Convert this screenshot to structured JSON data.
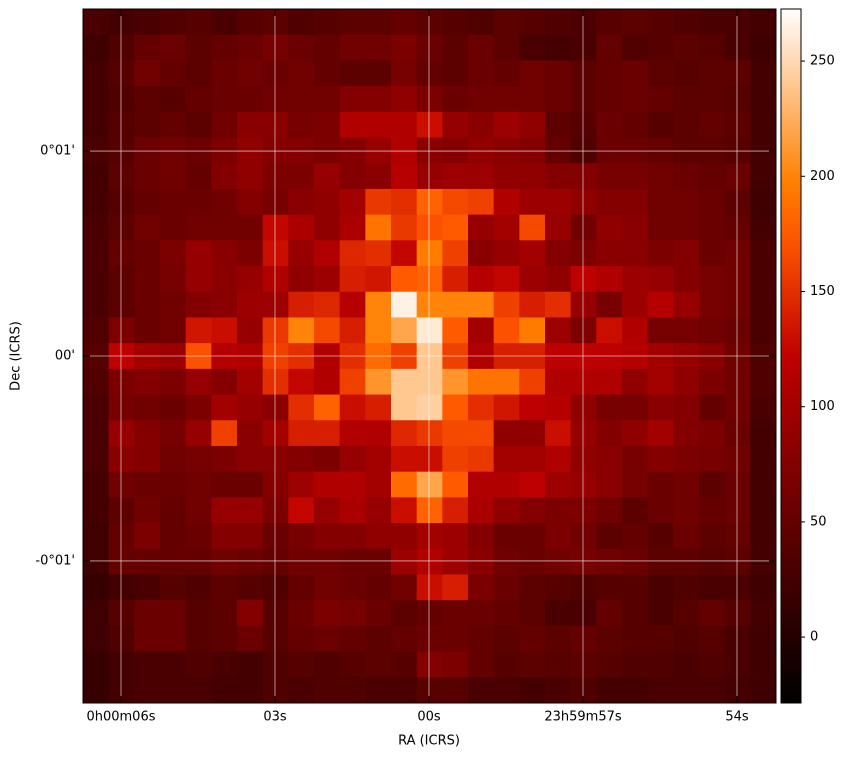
{
  "chart_data": {
    "type": "heatmap",
    "x_label": "RA (ICRS)",
    "y_label": "Dec (ICRS)",
    "xlim": [
      6.74,
      -6.76
    ],
    "xticks": [
      {
        "value": 6,
        "label": "0h00m06s"
      },
      {
        "value": 3,
        "label": "03s"
      },
      {
        "value": 0,
        "label": "00s"
      },
      {
        "value": -3,
        "label": "23h59m57s"
      },
      {
        "value": -6,
        "label": "54s"
      }
    ],
    "ylim": [
      -1.693,
      1.693
    ],
    "yticks": [
      {
        "value": 1,
        "label": "0°01'"
      },
      {
        "value": 0,
        "label": "00'"
      },
      {
        "value": -1,
        "label": "-0°01'"
      }
    ],
    "grid": true,
    "grid_color": "#ffffff",
    "colormap": "gist_heat",
    "clim": [
      -28.6,
      272.6
    ],
    "cticks": [
      0,
      50,
      100,
      150,
      200,
      250
    ],
    "values": [
      [
        30,
        25,
        30,
        35,
        40,
        30,
        40,
        45,
        35,
        40,
        45,
        45,
        50,
        45,
        40,
        35,
        45,
        40,
        35,
        30,
        40,
        45,
        40,
        35,
        30,
        30,
        25
      ],
      [
        20,
        35,
        50,
        55,
        45,
        50,
        55,
        65,
        55,
        50,
        60,
        60,
        70,
        55,
        45,
        55,
        45,
        30,
        25,
        30,
        50,
        35,
        40,
        45,
        40,
        30,
        20
      ],
      [
        25,
        40,
        60,
        50,
        45,
        55,
        60,
        55,
        60,
        50,
        45,
        45,
        65,
        50,
        45,
        55,
        50,
        60,
        55,
        45,
        50,
        55,
        45,
        40,
        45,
        45,
        25
      ],
      [
        25,
        35,
        45,
        40,
        50,
        55,
        55,
        60,
        60,
        60,
        75,
        75,
        85,
        70,
        55,
        60,
        60,
        60,
        55,
        45,
        50,
        55,
        50,
        45,
        45,
        40,
        25
      ],
      [
        25,
        40,
        45,
        50,
        45,
        60,
        80,
        80,
        65,
        70,
        110,
        110,
        110,
        130,
        90,
        80,
        95,
        85,
        45,
        40,
        55,
        50,
        40,
        45,
        50,
        45,
        25
      ],
      [
        30,
        40,
        55,
        60,
        55,
        70,
        85,
        75,
        75,
        70,
        75,
        90,
        110,
        80,
        75,
        85,
        80,
        75,
        50,
        35,
        55,
        55,
        50,
        45,
        45,
        40,
        25
      ],
      [
        25,
        45,
        55,
        60,
        50,
        75,
        85,
        70,
        70,
        90,
        75,
        80,
        115,
        90,
        95,
        95,
        85,
        85,
        75,
        75,
        65,
        65,
        60,
        55,
        50,
        55,
        25
      ],
      [
        25,
        40,
        50,
        55,
        55,
        60,
        75,
        65,
        80,
        85,
        100,
        155,
        150,
        180,
        165,
        160,
        110,
        95,
        95,
        85,
        75,
        75,
        60,
        60,
        55,
        45,
        20
      ],
      [
        30,
        45,
        60,
        55,
        60,
        60,
        60,
        125,
        105,
        85,
        105,
        190,
        155,
        170,
        175,
        90,
        100,
        165,
        90,
        60,
        85,
        80,
        60,
        60,
        55,
        50,
        25
      ],
      [
        30,
        50,
        55,
        70,
        90,
        80,
        70,
        130,
        90,
        110,
        145,
        150,
        125,
        195,
        160,
        80,
        90,
        100,
        75,
        70,
        80,
        80,
        70,
        75,
        55,
        60,
        30
      ],
      [
        30,
        45,
        55,
        65,
        90,
        80,
        90,
        110,
        85,
        95,
        140,
        135,
        175,
        180,
        140,
        115,
        125,
        95,
        85,
        120,
        110,
        95,
        90,
        75,
        65,
        60,
        30
      ],
      [
        30,
        45,
        55,
        60,
        75,
        80,
        95,
        95,
        140,
        145,
        115,
        200,
        265,
        200,
        200,
        200,
        160,
        140,
        150,
        90,
        65,
        95,
        115,
        90,
        65,
        60,
        30
      ],
      [
        35,
        70,
        55,
        60,
        135,
        130,
        90,
        155,
        200,
        165,
        140,
        200,
        220,
        260,
        175,
        100,
        170,
        195,
        95,
        70,
        130,
        110,
        65,
        65,
        60,
        55,
        30
      ],
      [
        40,
        120,
        100,
        95,
        170,
        115,
        110,
        160,
        150,
        110,
        150,
        185,
        160,
        240,
        160,
        110,
        140,
        140,
        120,
        120,
        120,
        115,
        100,
        90,
        80,
        60,
        35
      ],
      [
        35,
        70,
        75,
        70,
        90,
        75,
        100,
        150,
        125,
        110,
        160,
        210,
        240,
        240,
        210,
        190,
        190,
        160,
        110,
        110,
        110,
        85,
        100,
        85,
        70,
        60,
        35
      ],
      [
        30,
        65,
        60,
        55,
        70,
        100,
        90,
        80,
        150,
        180,
        130,
        140,
        240,
        245,
        175,
        150,
        135,
        120,
        115,
        85,
        65,
        65,
        80,
        75,
        50,
        60,
        30
      ],
      [
        30,
        90,
        75,
        65,
        90,
        160,
        80,
        100,
        140,
        140,
        110,
        110,
        145,
        155,
        165,
        165,
        85,
        85,
        130,
        90,
        75,
        85,
        100,
        75,
        70,
        55,
        25
      ],
      [
        30,
        80,
        75,
        60,
        65,
        70,
        80,
        80,
        75,
        70,
        90,
        100,
        130,
        130,
        160,
        155,
        100,
        100,
        110,
        85,
        80,
        65,
        75,
        70,
        65,
        60,
        25
      ],
      [
        25,
        60,
        55,
        55,
        60,
        55,
        55,
        75,
        95,
        110,
        110,
        100,
        185,
        220,
        175,
        110,
        110,
        120,
        95,
        90,
        80,
        65,
        55,
        60,
        45,
        55,
        25
      ],
      [
        25,
        45,
        60,
        50,
        60,
        90,
        90,
        70,
        125,
        90,
        105,
        90,
        130,
        180,
        140,
        105,
        85,
        75,
        70,
        70,
        60,
        45,
        55,
        60,
        50,
        55,
        25
      ],
      [
        20,
        50,
        70,
        50,
        55,
        75,
        75,
        55,
        65,
        75,
        75,
        85,
        85,
        100,
        95,
        75,
        55,
        55,
        70,
        60,
        45,
        50,
        40,
        55,
        45,
        50,
        25
      ],
      [
        20,
        50,
        50,
        50,
        50,
        60,
        55,
        50,
        60,
        60,
        55,
        55,
        95,
        110,
        95,
        80,
        60,
        55,
        60,
        65,
        60,
        55,
        45,
        45,
        40,
        45,
        25
      ],
      [
        15,
        25,
        30,
        40,
        35,
        45,
        40,
        35,
        50,
        60,
        55,
        50,
        60,
        130,
        140,
        70,
        55,
        45,
        40,
        35,
        40,
        40,
        30,
        35,
        30,
        30,
        20
      ],
      [
        20,
        40,
        55,
        55,
        40,
        45,
        75,
        40,
        55,
        70,
        65,
        55,
        45,
        50,
        55,
        55,
        50,
        45,
        30,
        30,
        50,
        40,
        30,
        40,
        50,
        40,
        25
      ],
      [
        20,
        35,
        55,
        55,
        40,
        45,
        55,
        40,
        50,
        55,
        50,
        45,
        50,
        55,
        55,
        50,
        45,
        50,
        45,
        50,
        45,
        40,
        40,
        35,
        40,
        30,
        20
      ],
      [
        15,
        25,
        30,
        30,
        35,
        30,
        25,
        35,
        40,
        35,
        40,
        45,
        40,
        75,
        70,
        50,
        40,
        45,
        40,
        45,
        40,
        35,
        35,
        30,
        35,
        30,
        20
      ],
      [
        15,
        25,
        30,
        30,
        30,
        25,
        25,
        35,
        30,
        35,
        35,
        30,
        30,
        40,
        40,
        30,
        30,
        25,
        30,
        35,
        25,
        25,
        30,
        30,
        30,
        25,
        20
      ]
    ]
  }
}
